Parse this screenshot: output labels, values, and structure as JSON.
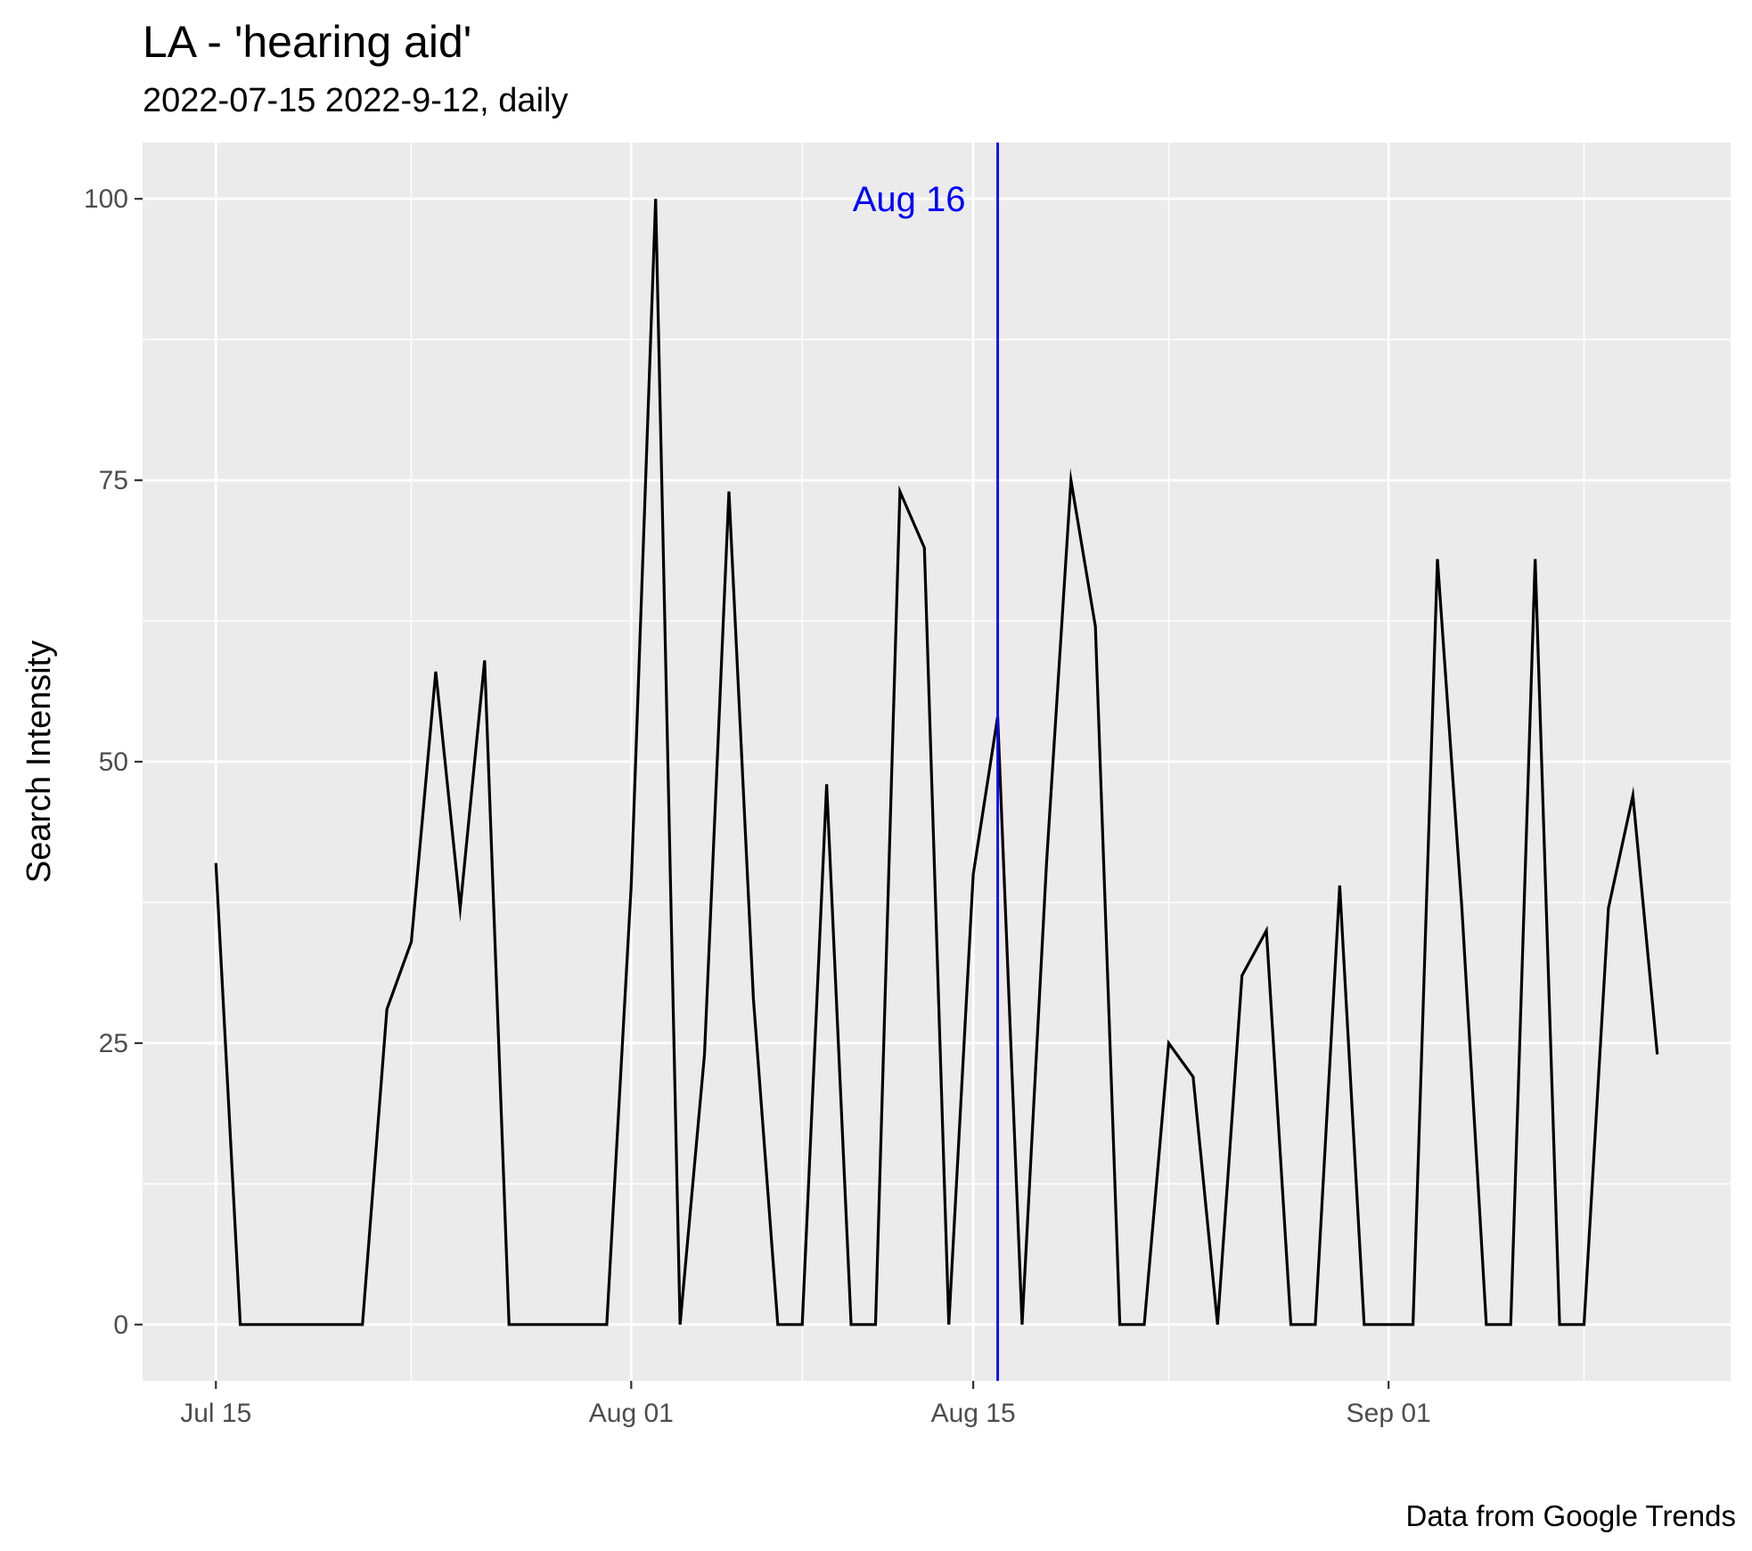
{
  "chart_data": {
    "type": "line",
    "title": "LA  - 'hearing aid'",
    "subtitle": "2022-07-15 2022-9-12, daily",
    "caption": "Data from Google Trends",
    "xlabel": "",
    "ylabel": "Search Intensity",
    "x_start": "2022-07-15",
    "x_end": "2022-09-12",
    "xlim": [
      "2022-07-12",
      "2022-09-15"
    ],
    "ylim": [
      -5,
      105
    ],
    "x_ticks": [
      {
        "date": "2022-07-15",
        "label": "Jul 15"
      },
      {
        "date": "2022-08-01",
        "label": "Aug 01"
      },
      {
        "date": "2022-08-15",
        "label": "Aug 15"
      },
      {
        "date": "2022-09-01",
        "label": "Sep 01"
      }
    ],
    "y_ticks": [
      0,
      25,
      50,
      75,
      100
    ],
    "grid": true,
    "series": [
      {
        "color": "#000000",
        "x": [
          "2022-07-15",
          "2022-07-16",
          "2022-07-17",
          "2022-07-18",
          "2022-07-19",
          "2022-07-20",
          "2022-07-21",
          "2022-07-22",
          "2022-07-23",
          "2022-07-24",
          "2022-07-25",
          "2022-07-26",
          "2022-07-27",
          "2022-07-28",
          "2022-07-29",
          "2022-07-30",
          "2022-07-31",
          "2022-08-01",
          "2022-08-02",
          "2022-08-03",
          "2022-08-04",
          "2022-08-05",
          "2022-08-06",
          "2022-08-07",
          "2022-08-08",
          "2022-08-09",
          "2022-08-10",
          "2022-08-11",
          "2022-08-12",
          "2022-08-13",
          "2022-08-14",
          "2022-08-15",
          "2022-08-16",
          "2022-08-17",
          "2022-08-18",
          "2022-08-19",
          "2022-08-20",
          "2022-08-21",
          "2022-08-22",
          "2022-08-23",
          "2022-08-24",
          "2022-08-25",
          "2022-08-26",
          "2022-08-27",
          "2022-08-28",
          "2022-08-29",
          "2022-08-30",
          "2022-08-31",
          "2022-09-01",
          "2022-09-02",
          "2022-09-03",
          "2022-09-04",
          "2022-09-05",
          "2022-09-06",
          "2022-09-07",
          "2022-09-08",
          "2022-09-09",
          "2022-09-10",
          "2022-09-11",
          "2022-09-12"
        ],
        "values": [
          41,
          0,
          0,
          0,
          0,
          0,
          0,
          28,
          34,
          58,
          37,
          59,
          0,
          0,
          0,
          0,
          0,
          39,
          100,
          0,
          24,
          74,
          29,
          0,
          0,
          48,
          0,
          0,
          74,
          69,
          0,
          40,
          54,
          0,
          41,
          75,
          62,
          0,
          0,
          25,
          22,
          0,
          31,
          35,
          0,
          0,
          39,
          0,
          0,
          0,
          68,
          37,
          0,
          0,
          68,
          0,
          0,
          37,
          47,
          24
        ]
      }
    ],
    "vline": {
      "date": "2022-08-16",
      "label": "Aug 16",
      "color": "#0000ff"
    }
  }
}
